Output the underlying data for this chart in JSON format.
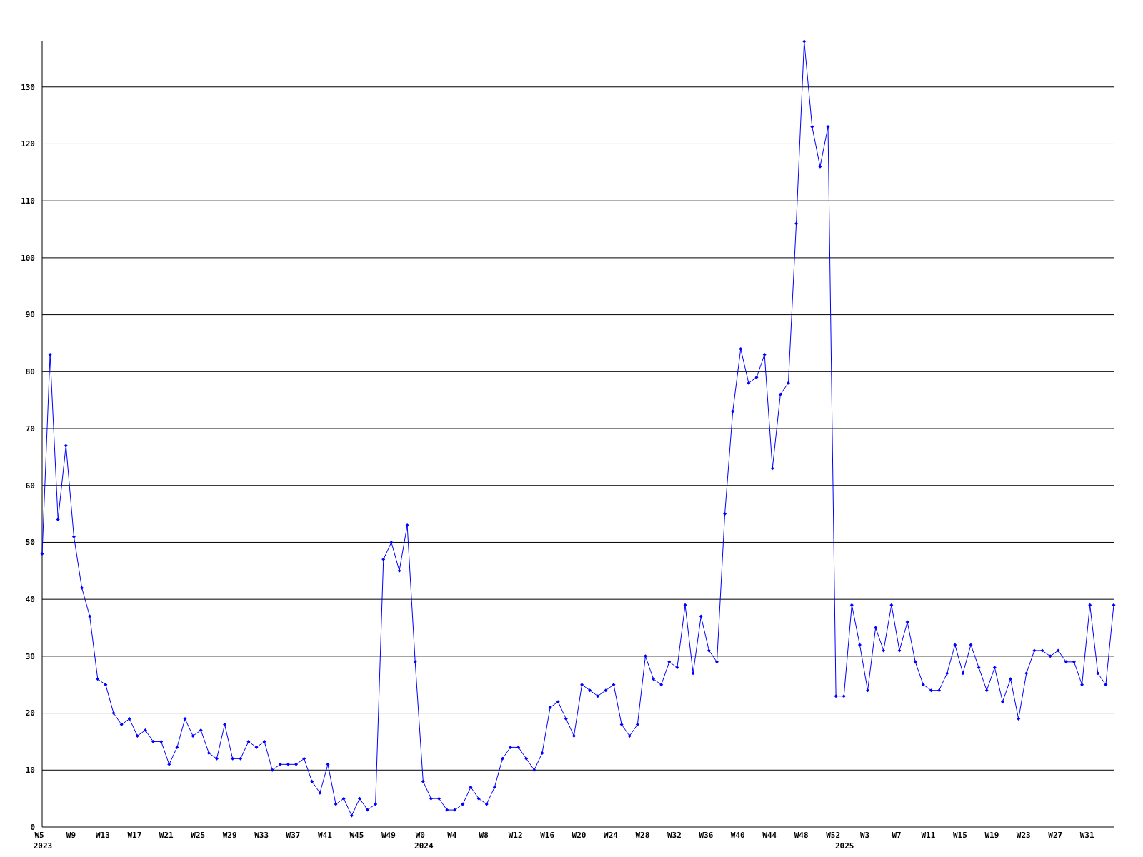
{
  "chart_data": {
    "type": "line",
    "categories": [
      "W5\n2023",
      null,
      null,
      null,
      "W9",
      null,
      null,
      null,
      "W13",
      null,
      null,
      null,
      "W17",
      null,
      null,
      null,
      "W21",
      null,
      null,
      null,
      "W25",
      null,
      null,
      null,
      "W29",
      null,
      null,
      null,
      "W33",
      null,
      null,
      null,
      "W37",
      null,
      null,
      null,
      "W41",
      null,
      null,
      null,
      "W45",
      null,
      null,
      null,
      "W49",
      null,
      null,
      null,
      "W0\n2024",
      null,
      null,
      null,
      "W4",
      null,
      null,
      null,
      "W8",
      null,
      null,
      null,
      "W12",
      null,
      null,
      null,
      "W16",
      null,
      null,
      null,
      "W20",
      null,
      null,
      null,
      "W24",
      null,
      null,
      null,
      "W28",
      null,
      null,
      null,
      "W32",
      null,
      null,
      null,
      "W36",
      null,
      null,
      null,
      "W40",
      null,
      null,
      null,
      "W44",
      null,
      null,
      null,
      "W48",
      null,
      null,
      null,
      "W52",
      "\n2025",
      null,
      null,
      "W3",
      null,
      null,
      null,
      "W7",
      null,
      null,
      null,
      "W11",
      null,
      null,
      null,
      "W15",
      null,
      null,
      null,
      "W19",
      null,
      null,
      null,
      "W23",
      null,
      null,
      null,
      "W27",
      null,
      null,
      null,
      "W31",
      null,
      null,
      null
    ],
    "series": [
      {
        "color": "#0000ff",
        "values": [
          48,
          83,
          54,
          67,
          51,
          42,
          37,
          26,
          25,
          20,
          18,
          19,
          16,
          17,
          15,
          15,
          11,
          14,
          19,
          16,
          17,
          13,
          12,
          18,
          12,
          12,
          15,
          14,
          15,
          10,
          11,
          11,
          11,
          12,
          8,
          6,
          11,
          4,
          5,
          2,
          5,
          3,
          4,
          47,
          50,
          45,
          53,
          29,
          8,
          5,
          5,
          3,
          3,
          4,
          7,
          5,
          4,
          7,
          12,
          14,
          14,
          12,
          10,
          13,
          21,
          22,
          19,
          16,
          25,
          24,
          23,
          24,
          25,
          18,
          16,
          18,
          30,
          26,
          25,
          29,
          28,
          39,
          27,
          37,
          31,
          29,
          55,
          73,
          84,
          78,
          79,
          83,
          63,
          76,
          78,
          106,
          138,
          123,
          116,
          123,
          23,
          23,
          39,
          32,
          24,
          35,
          31,
          39,
          31,
          36,
          29,
          25,
          24,
          24,
          27,
          32,
          27,
          32,
          28,
          24,
          28,
          22,
          26,
          19,
          27,
          31,
          31,
          30,
          31,
          29,
          29,
          25,
          39,
          27,
          25,
          39
        ]
      }
    ],
    "ylim": [
      0,
      138
    ],
    "yticks": [
      0,
      10,
      20,
      30,
      40,
      50,
      60,
      70,
      80,
      90,
      100,
      110,
      120,
      130
    ],
    "grid": "y",
    "marker": "diamond",
    "line_style": "solid"
  }
}
